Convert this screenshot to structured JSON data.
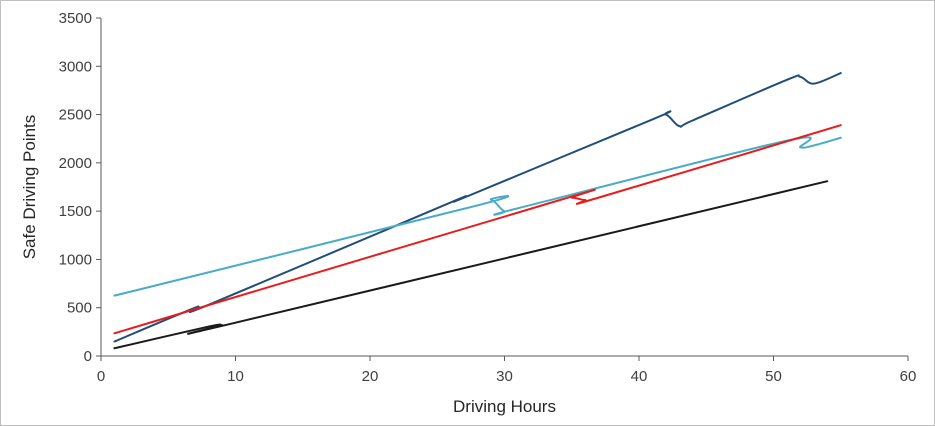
{
  "chart_data": {
    "type": "line",
    "title": "",
    "xlabel": "Driving Hours",
    "ylabel": "Safe Driving Points",
    "xlim": [
      0,
      60
    ],
    "ylim": [
      0,
      3500
    ],
    "x_ticks": [
      "0",
      "10",
      "20",
      "30",
      "40",
      "50",
      "60"
    ],
    "y_ticks": [
      "0",
      "500",
      "1000",
      "1500",
      "2000",
      "2500",
      "3000",
      "3500"
    ],
    "grid": false,
    "legend": "none",
    "series": [
      {
        "color": "#1f4e79",
        "x": [
          1,
          7,
          8,
          26,
          27,
          41,
          42,
          43,
          44,
          51,
          52,
          53,
          55
        ],
        "y": [
          150,
          500,
          530,
          1590,
          1640,
          2450,
          2500,
          2380,
          2440,
          2860,
          2890,
          2820,
          2930
        ]
      },
      {
        "color": "#4bacc6",
        "x": [
          1,
          28,
          29,
          30,
          31,
          51,
          52,
          53,
          55
        ],
        "y": [
          625,
          1560,
          1620,
          1500,
          1530,
          2230,
          2160,
          2180,
          2260
        ]
      },
      {
        "color": "#e81c1c",
        "x": [
          1,
          34,
          35,
          36,
          37,
          55
        ],
        "y": [
          235,
          1610,
          1640,
          1615,
          1640,
          2390
        ]
      },
      {
        "color": "#1a1a1a",
        "x": [
          1,
          8,
          9,
          10,
          54
        ],
        "y": [
          80,
          305,
          320,
          345,
          1810
        ]
      }
    ]
  }
}
